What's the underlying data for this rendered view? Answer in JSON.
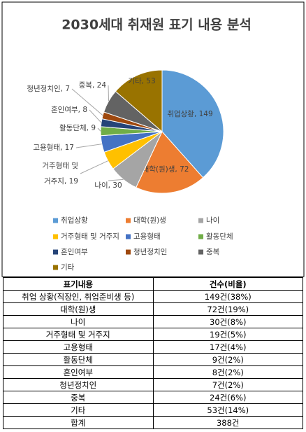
{
  "chart_data": {
    "type": "pie",
    "title": "2030세대 취재원 표기 내용 분석",
    "categories": [
      "취업상황",
      "대학(원)생",
      "나이",
      "거주형태 및 거주지",
      "고용형태",
      "활동단체",
      "혼인여부",
      "청년정치인",
      "중복",
      "기타"
    ],
    "values": [
      149,
      72,
      30,
      19,
      17,
      9,
      8,
      7,
      24,
      53
    ],
    "value_labels": [
      "취업상황, 149",
      "대학(원)생, 72",
      "나이, 30",
      "거주형태 및 거주지, 19",
      "고용형태, 17",
      "활동단체, 9",
      "혼인여부, 8",
      "청년정치인, 7",
      "중복, 24",
      "기타, 53"
    ],
    "colors": [
      "#5b9bd5",
      "#ed7d31",
      "#a5a5a5",
      "#ffc000",
      "#4472c4",
      "#70ad47",
      "#264478",
      "#9e480e",
      "#636363",
      "#997300"
    ],
    "legend": "bottom"
  },
  "table": {
    "header": [
      "표기내용",
      "건수(비율)"
    ],
    "rows": [
      [
        "취업 상황(직장인, 취업준비생 등)",
        "149건(38%)"
      ],
      [
        "대학(원)생",
        "72건(19%)"
      ],
      [
        "나이",
        "30건(8%)"
      ],
      [
        "거주형태 및 거주지",
        "19건(5%)"
      ],
      [
        "고용형태",
        "17건(4%)"
      ],
      [
        "활동단체",
        "9건(2%)"
      ],
      [
        "혼인여부",
        "8건(2%)"
      ],
      [
        "청년정치인",
        "7건(2%)"
      ],
      [
        "중복",
        "24건(6%)"
      ],
      [
        "기타",
        "53건(14%)"
      ],
      [
        "합계",
        "388건"
      ]
    ]
  }
}
